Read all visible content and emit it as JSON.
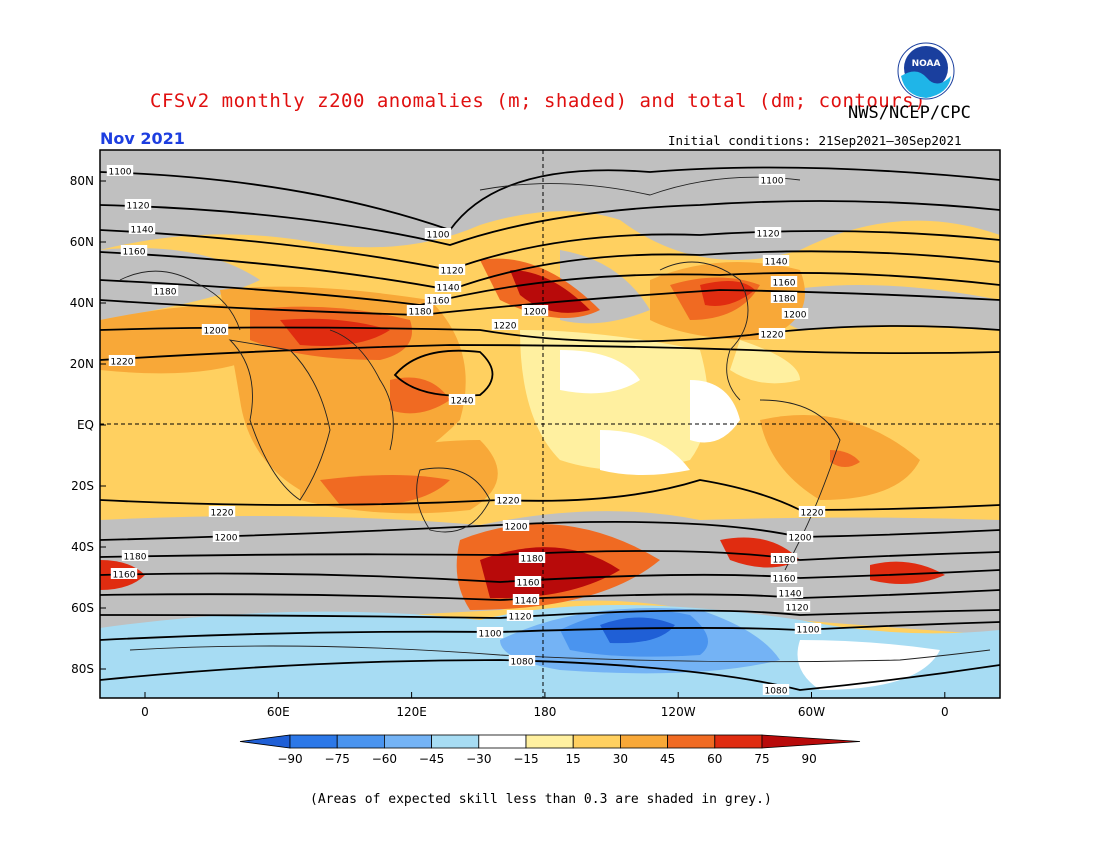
{
  "header": {
    "title": "CFSv2 monthly z200 anomalies (m; shaded) and total (dm; contours)",
    "agency": "NWS/NCEP/CPC",
    "month": "Nov 2021",
    "initial_conditions": "Initial conditions: 21Sep2021–30Sep2021"
  },
  "logo": {
    "text": "NOAA",
    "icon": "noaa-logo-icon"
  },
  "map": {
    "lat_labels": [
      "80N",
      "60N",
      "40N",
      "20N",
      "EQ",
      "20S",
      "40S",
      "60S",
      "80S"
    ],
    "lon_labels": [
      "0",
      "60E",
      "120E",
      "180",
      "120W",
      "60W",
      "0"
    ],
    "grey_meaning": "low-skill (grey)"
  },
  "colorbar": {
    "ticks": [
      "−90",
      "−75",
      "−60",
      "−45",
      "−30",
      "−15",
      "15",
      "30",
      "45",
      "60",
      "75",
      "90"
    ],
    "colors": [
      "#1f5fd6",
      "#2c78e8",
      "#4a94ef",
      "#74b3f5",
      "#a7dcf3",
      "#ffffff",
      "#fff0a0",
      "#ffd060",
      "#f8a838",
      "#f06a22",
      "#e02c10",
      "#b80a0a"
    ]
  },
  "contour_labels": {
    "left": [
      "1100",
      "1120",
      "1140",
      "1160",
      "1180",
      "1200",
      "1220"
    ],
    "pacific": [
      "1100",
      "1120",
      "1140",
      "1160",
      "1180",
      "1200",
      "1220",
      "1240"
    ],
    "atlantic": [
      "1100",
      "1120",
      "1140",
      "1160",
      "1180",
      "1200",
      "1220"
    ],
    "south_left": [
      "1220",
      "1200",
      "1180",
      "1160"
    ],
    "south_pacific": [
      "1220",
      "1200",
      "1180",
      "1160",
      "1140",
      "1120",
      "1100",
      "1080"
    ],
    "south_right": [
      "1220",
      "1200",
      "1180",
      "1160",
      "1140",
      "1120",
      "1100",
      "1080"
    ]
  },
  "footnote": "(Areas of expected skill less than 0.3 are shaded in grey.)"
}
